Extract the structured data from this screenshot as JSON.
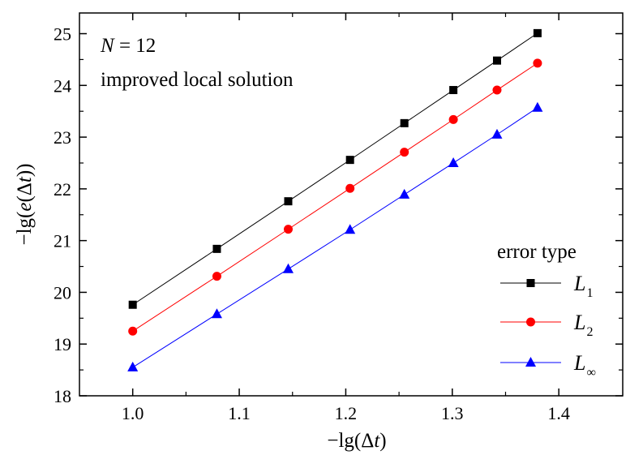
{
  "chart_data": {
    "type": "line",
    "x": [
      1.0,
      1.079,
      1.146,
      1.204,
      1.255,
      1.301,
      1.342,
      1.38
    ],
    "series": [
      {
        "name": "L1",
        "label_main": "L",
        "label_sub": "1",
        "color": "#000000",
        "marker": "square",
        "values": [
          19.76,
          20.84,
          21.76,
          22.56,
          23.27,
          23.91,
          24.48,
          25.01
        ]
      },
      {
        "name": "L2",
        "label_main": "L",
        "label_sub": "2",
        "color": "#ff0000",
        "marker": "circle",
        "values": [
          19.25,
          20.31,
          21.22,
          22.01,
          22.71,
          23.34,
          23.91,
          24.43
        ]
      },
      {
        "name": "L∞",
        "label_main": "L",
        "label_sub": "∞",
        "color": "#0000ff",
        "marker": "triangle",
        "values": [
          18.55,
          19.58,
          20.45,
          21.21,
          21.89,
          22.5,
          23.05,
          23.57
        ]
      }
    ],
    "xlim": [
      0.95,
      1.46
    ],
    "ylim": [
      18.0,
      25.4
    ],
    "xticks": [
      "1.0",
      "1.1",
      "1.2",
      "1.3",
      "1.4"
    ],
    "yticks": [
      "18",
      "19",
      "20",
      "21",
      "22",
      "23",
      "24",
      "25"
    ],
    "xlabel": "−lg(Δt)",
    "ylabel": "−lg(e(Δt))",
    "annotations": [
      "N = 12",
      "improved local solution"
    ],
    "legend_title": "error type",
    "legend_position": "bottom-right",
    "grid": false
  }
}
